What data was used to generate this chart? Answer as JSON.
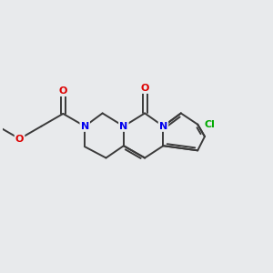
{
  "bg_color": "#e8eaec",
  "bond_color": "#3a3a3a",
  "bond_width": 1.4,
  "N_color": "#0000ee",
  "O_color": "#dd0000",
  "Cl_color": "#00aa00",
  "figsize": [
    3.0,
    3.0
  ],
  "dpi": 100,
  "xlim": [
    -3.8,
    4.2
  ],
  "ylim": [
    -2.2,
    2.2
  ]
}
